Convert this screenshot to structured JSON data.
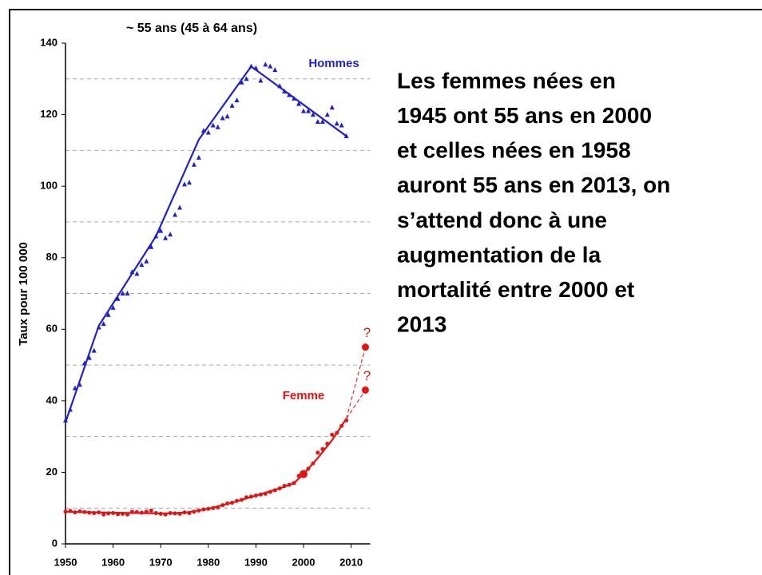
{
  "chart_data": {
    "type": "scatter",
    "title": "~ 55 ans (45 à 64 ans)",
    "y_label": "Taux pour 100 000",
    "xlim": [
      1950,
      2014
    ],
    "xticks": [
      1950,
      1960,
      1970,
      1980,
      1990,
      2000,
      2010
    ],
    "ylim": [
      0,
      140
    ],
    "yticks": [
      0,
      20,
      40,
      60,
      80,
      100,
      120,
      140
    ],
    "ygrid": [
      10,
      30,
      50,
      70,
      90,
      110,
      130
    ],
    "x": [
      1950,
      1951,
      1952,
      1953,
      1954,
      1955,
      1956,
      1957,
      1958,
      1959,
      1960,
      1961,
      1962,
      1963,
      1964,
      1965,
      1966,
      1967,
      1968,
      1969,
      1970,
      1971,
      1972,
      1973,
      1974,
      1975,
      1976,
      1977,
      1978,
      1979,
      1980,
      1981,
      1982,
      1983,
      1984,
      1985,
      1986,
      1987,
      1988,
      1989,
      1990,
      1991,
      1992,
      1993,
      1994,
      1995,
      1996,
      1997,
      1998,
      1999,
      2000,
      2001,
      2002,
      2003,
      2004,
      2005,
      2006,
      2007,
      2008,
      2009
    ],
    "series": [
      {
        "name": "Hommes",
        "color": "#1f1fd6",
        "marker": "triangle",
        "values": [
          34.5,
          37.5,
          43.5,
          44.5,
          50.5,
          52,
          54,
          60.5,
          61.5,
          64,
          66,
          68.5,
          70,
          70,
          76,
          75.5,
          78,
          79,
          83,
          86,
          87.5,
          85.5,
          86.5,
          92,
          94,
          100.5,
          101,
          106,
          108,
          115.5,
          115,
          117,
          116.5,
          119,
          119.5,
          122.5,
          124,
          129,
          130,
          133.5,
          133,
          129.5,
          134,
          133.5,
          132.5,
          128,
          126.5,
          125.5,
          124.5,
          123,
          121,
          121,
          120,
          118,
          118,
          120,
          122,
          117.5,
          117,
          114
        ]
      },
      {
        "name": "Femme",
        "color": "#e81010",
        "marker": "circle",
        "values": [
          9,
          9.2,
          8.8,
          9.1,
          8.9,
          8.7,
          8.6,
          8.8,
          8.2,
          8.5,
          8.6,
          8.3,
          8.4,
          8.2,
          9.0,
          8.9,
          8.7,
          9.0,
          9.3,
          8.6,
          8.4,
          8.2,
          8.6,
          8.5,
          8.4,
          8.8,
          8.6,
          9.0,
          9.3,
          9.6,
          9.8,
          10.0,
          10.2,
          10.8,
          11.3,
          11.5,
          12.0,
          12.3,
          13.0,
          13.2,
          13.5,
          13.8,
          14.0,
          14.5,
          15.0,
          15.5,
          16.2,
          16.5,
          17.0,
          19.0,
          19.5,
          21.0,
          22.5,
          25.5,
          26.5,
          28.0,
          30.5,
          31.0,
          33.0,
          34.5
        ]
      }
    ],
    "trend_lines": [
      {
        "color": "#1f1fd6",
        "x": [
          1950,
          1957,
          1969,
          1978,
          1989,
          2009
        ],
        "values": [
          34,
          61,
          86,
          113,
          133.5,
          114
        ]
      },
      {
        "color": "#e81010",
        "x": [
          1950,
          1960,
          1970,
          1975,
          1980,
          1985,
          1990,
          1995,
          1998,
          2000,
          2003,
          2006,
          2009
        ],
        "values": [
          9,
          8.7,
          8.5,
          8.7,
          9.8,
          11.5,
          13.5,
          15.5,
          17,
          19.5,
          24,
          29,
          35
        ]
      }
    ],
    "highlight": {
      "x": 2000,
      "value": 19.5,
      "color": "#e81010"
    },
    "projections": [
      {
        "x": [
          2009,
          2013
        ],
        "values": [
          35,
          55
        ],
        "label": "?",
        "color": "#e81010"
      },
      {
        "x": [
          2009,
          2013
        ],
        "values": [
          35,
          43
        ],
        "label": "?",
        "color": "#e81010"
      }
    ],
    "annotation_lines": [
      "Les femmes nées en",
      "1945 ont 55 ans en 2000",
      "et celles nées en 1958",
      "auront 55 ans en 2013, on",
      "s’attend donc à une",
      "augmentation de la",
      "mortalité entre 2000 et",
      "2013"
    ]
  }
}
